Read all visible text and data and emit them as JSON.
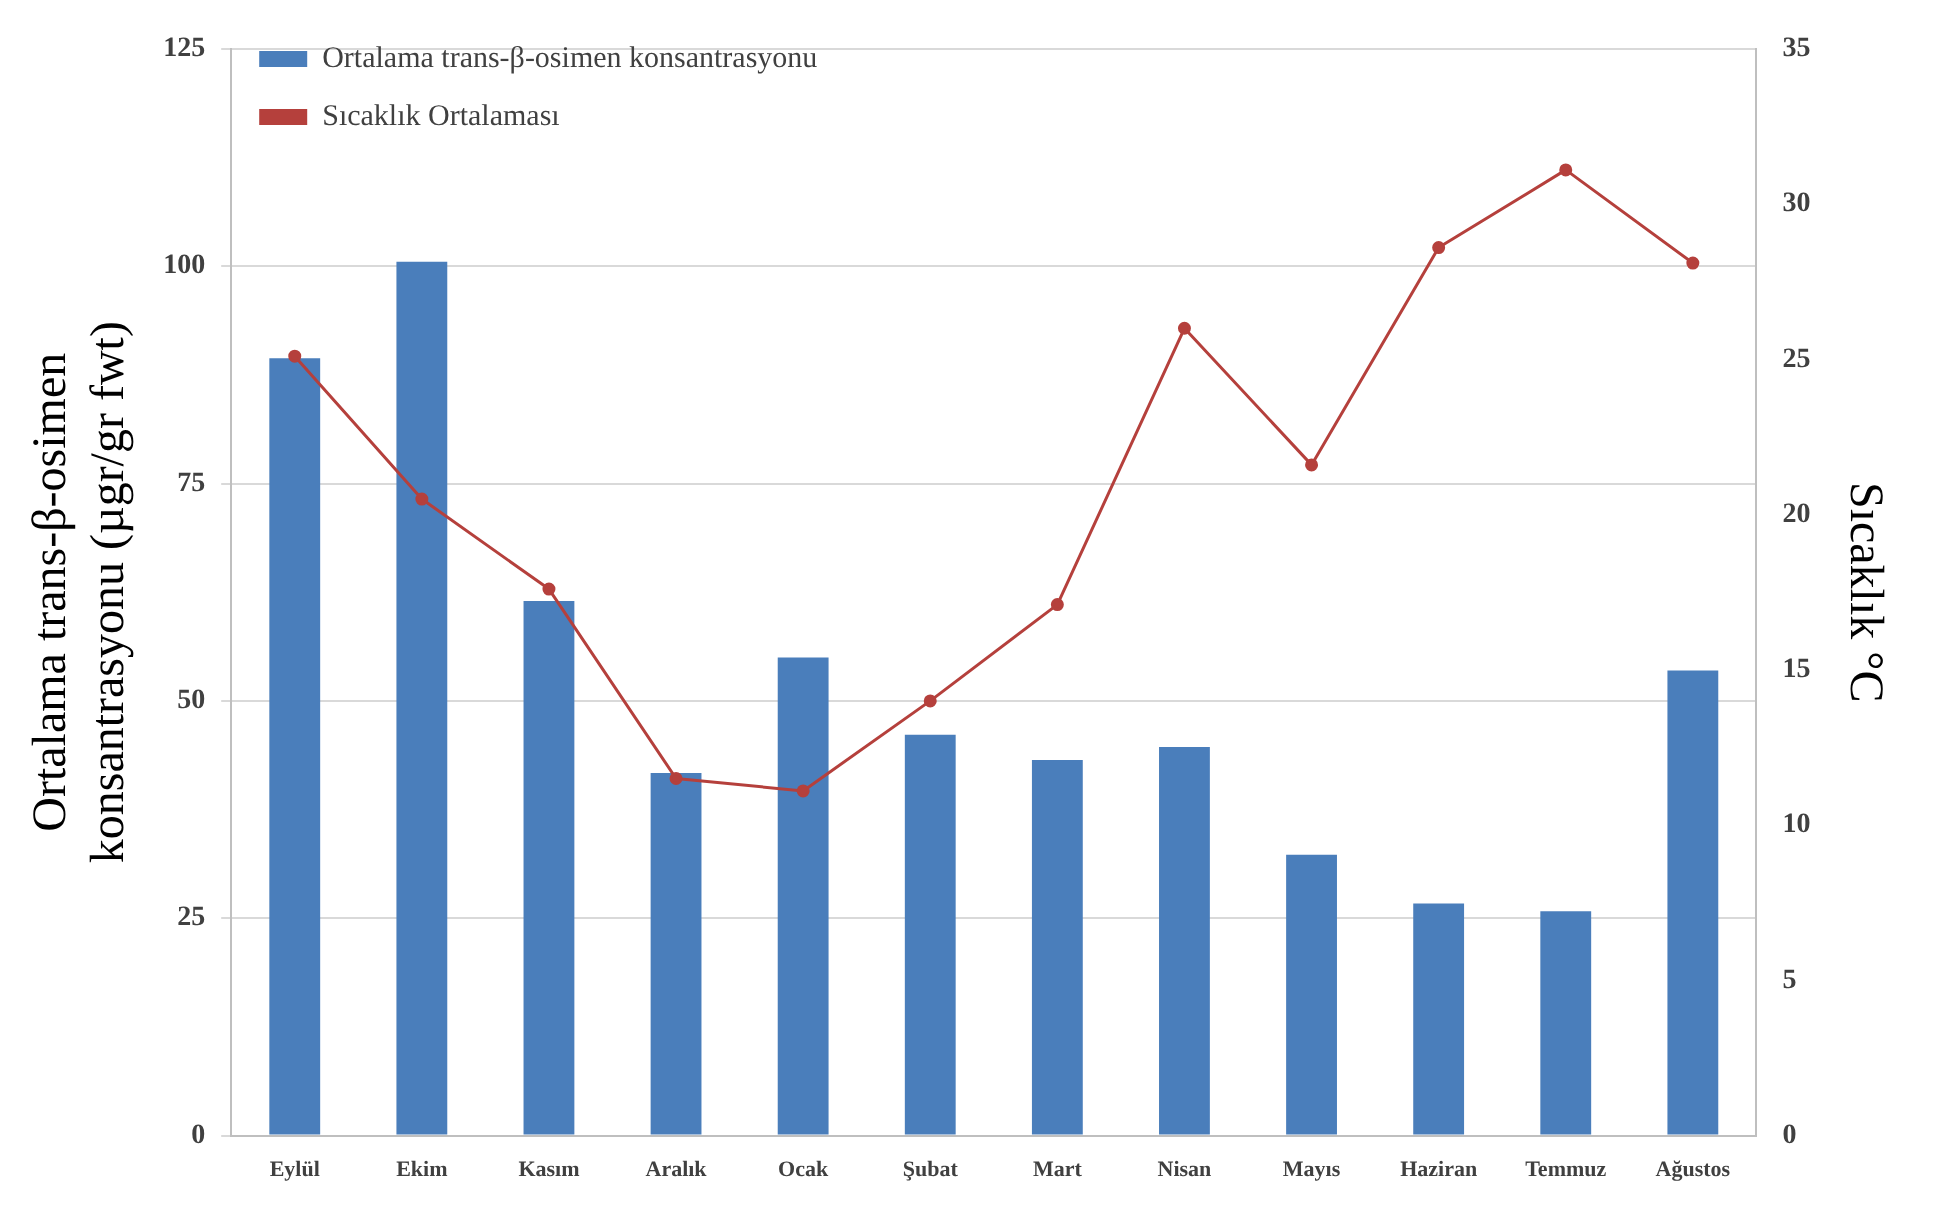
{
  "chart_data": {
    "type": "bar",
    "categories": [
      "Eylül",
      "Ekim",
      "Kasım",
      "Aralık",
      "Ocak",
      "Şubat",
      "Mart",
      "Nisan",
      "Mayıs",
      "Haziran",
      "Temmuz",
      "Ağustos"
    ],
    "series": [
      {
        "name": "Ortalama trans-β-osimen konsantrasyonu",
        "color": "#4a7ebb",
        "values": [
          89.4,
          100.5,
          61.5,
          41.7,
          55,
          46.1,
          43.2,
          44.7,
          32.3,
          26.7,
          25.8,
          53.5
        ]
      },
      {
        "name": "Sıcaklık Ortalaması",
        "type": "line",
        "axis": "y2",
        "color": "#b5403c",
        "marker": "circle",
        "values": [
          25.1,
          20.5,
          17.6,
          11.5,
          11.1,
          14.0,
          17.1,
          26.0,
          21.6,
          28.6,
          31.1,
          28.1
        ]
      }
    ],
    "ylabel": "Ortalama trans-β-osimen\nkonsantrasyonu (µgr/gr fwt)",
    "y2label": "Sıcaklık °C",
    "ylim": [
      0,
      125
    ],
    "yticks": [
      0,
      25,
      50,
      75,
      100,
      125
    ],
    "y2lim": [
      0,
      35
    ],
    "y2ticks": [
      0,
      5,
      10,
      15,
      20,
      25,
      30,
      35
    ],
    "grid": "y",
    "legend": "top left"
  }
}
